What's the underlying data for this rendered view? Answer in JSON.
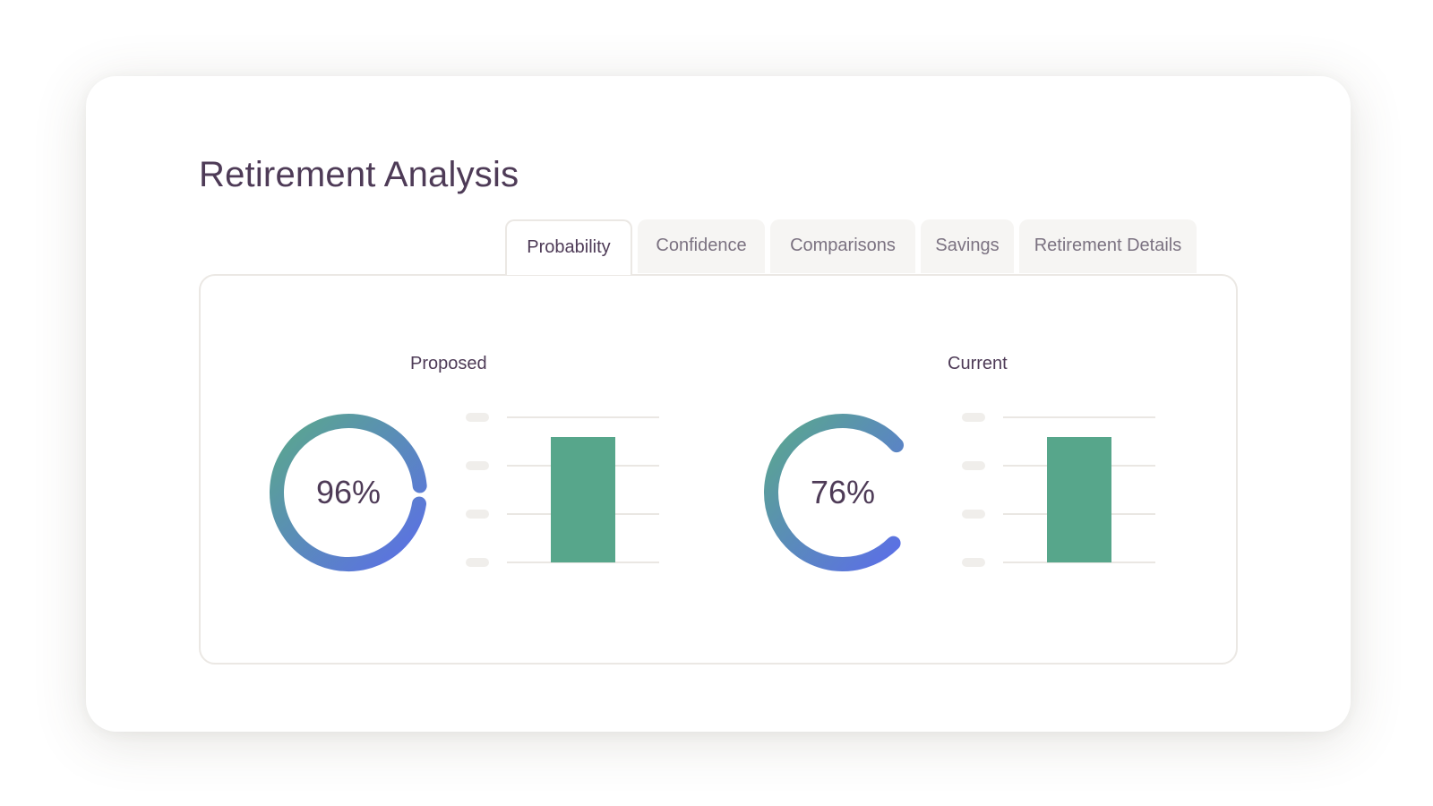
{
  "page": {
    "title": "Retirement Analysis"
  },
  "tabs": [
    {
      "label": "Probability",
      "active": true
    },
    {
      "label": "Confidence",
      "active": false
    },
    {
      "label": "Comparisons",
      "active": false
    },
    {
      "label": "Savings",
      "active": false
    },
    {
      "label": "Retirement Details",
      "active": false
    }
  ],
  "panels": {
    "proposed": {
      "label": "Proposed",
      "percent_text": "96%",
      "percent": 96
    },
    "current": {
      "label": "Current",
      "percent_text": "76%",
      "percent": 76
    }
  },
  "colors": {
    "title_text": "#4e3b57",
    "ring_start": "#5aa88c",
    "ring_end": "#5b6ee8",
    "bar": "#57a68b",
    "gridline": "#eae7e3",
    "tick_placeholder": "#f0eeeb",
    "tab_background": "#f6f5f3"
  }
}
